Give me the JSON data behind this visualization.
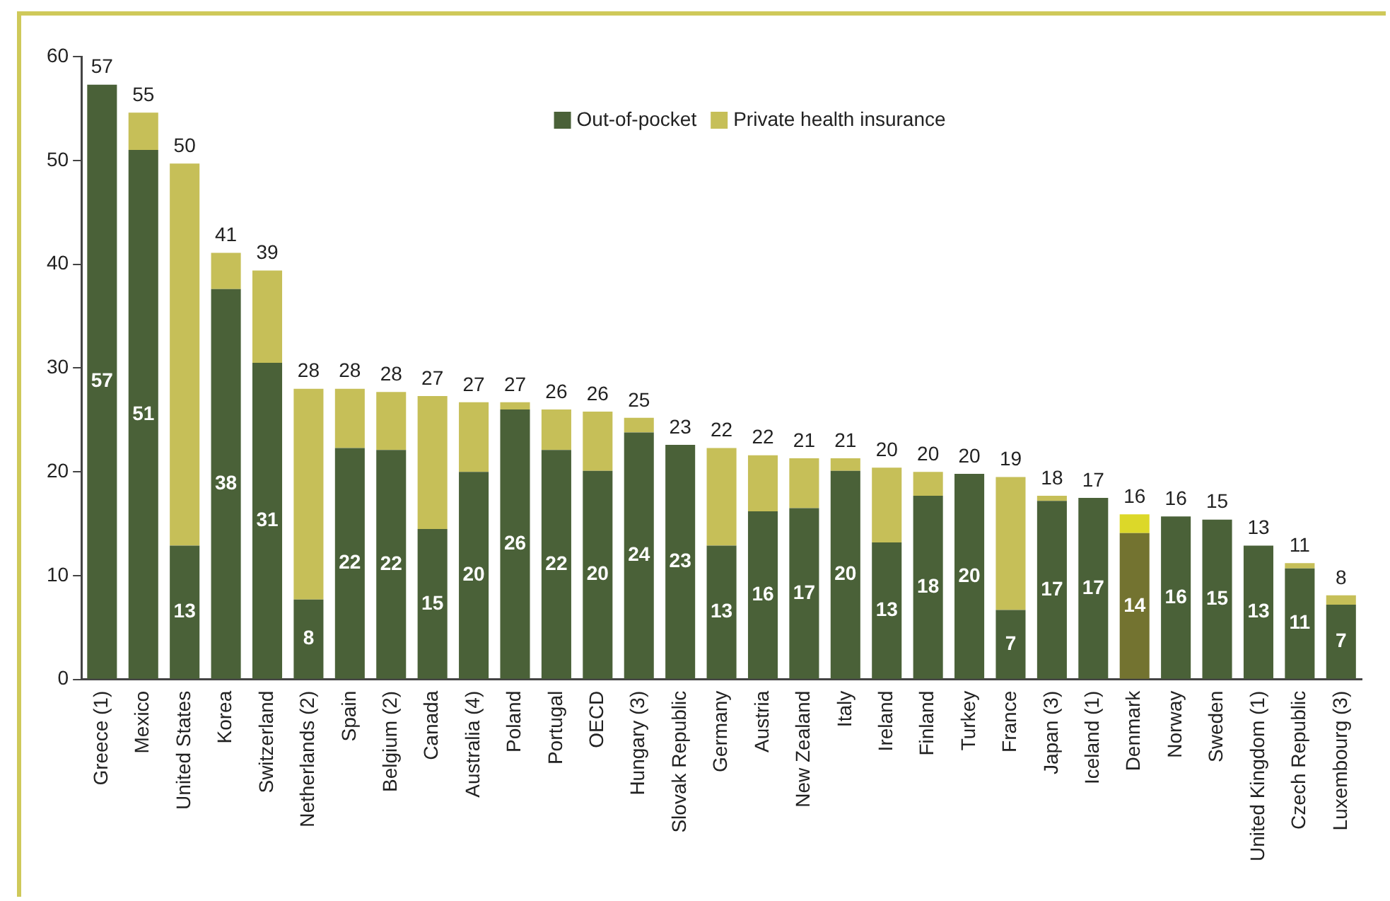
{
  "chart_data": {
    "type": "bar",
    "stacked": true,
    "legend": "top",
    "grid": false,
    "categories": [
      "Greece (1)",
      "Mexico",
      "United States",
      "Korea",
      "Switzerland",
      "Netherlands (2)",
      "Spain",
      "Belgium (2)",
      "Canada",
      "Australia (4)",
      "Poland",
      "Portugal",
      "OECD",
      "Hungary (3)",
      "Slovak Republic",
      "Germany",
      "Austria",
      "New Zealand",
      "Italy",
      "Ireland",
      "Finland",
      "Turkey",
      "France",
      "Japan (3)",
      "Iceland (1)",
      "Denmark",
      "Norway",
      "Sweden",
      "United Kingdom (1)",
      "Czech Republic",
      "Luxembourg (3)"
    ],
    "series": [
      {
        "name": "Out-of-pocket",
        "color": "#4a6138",
        "colors": [
          "#4a6138",
          "#4a6138",
          "#4a6138",
          "#4a6138",
          "#4a6138",
          "#4a6138",
          "#4a6138",
          "#4a6138",
          "#4a6138",
          "#4a6138",
          "#4a6138",
          "#4a6138",
          "#4a6138",
          "#4a6138",
          "#4a6138",
          "#4a6138",
          "#4a6138",
          "#4a6138",
          "#4a6138",
          "#4a6138",
          "#4a6138",
          "#4a6138",
          "#4a6138",
          "#4a6138",
          "#4a6138",
          "#737330",
          "#4a6138",
          "#4a6138",
          "#4a6138",
          "#4a6138",
          "#4a6138"
        ],
        "values": [
          57.3,
          51.0,
          12.9,
          37.6,
          30.5,
          7.7,
          22.3,
          22.1,
          14.5,
          20.0,
          26.0,
          22.1,
          20.1,
          23.8,
          22.6,
          12.9,
          16.2,
          16.5,
          20.1,
          13.2,
          17.7,
          19.8,
          6.7,
          17.2,
          17.5,
          14.1,
          15.7,
          15.4,
          12.9,
          10.7,
          7.2
        ],
        "value_labels": [
          "57",
          "51",
          "13",
          "38",
          "31",
          "8",
          "22",
          "22",
          "15",
          "20",
          "26",
          "22",
          "20",
          "24",
          "23",
          "13",
          "16",
          "17",
          "20",
          "13",
          "18",
          "20",
          "7",
          "17",
          "17",
          "14",
          "16",
          "15",
          "13",
          "11",
          "7"
        ]
      },
      {
        "name": "Private health insurance",
        "color": "#c6bf58",
        "colors": [
          "#c6bf58",
          "#c6bf58",
          "#c6bf58",
          "#c6bf58",
          "#c6bf58",
          "#c6bf58",
          "#c6bf58",
          "#c6bf58",
          "#c6bf58",
          "#c6bf58",
          "#c6bf58",
          "#c6bf58",
          "#c6bf58",
          "#c6bf58",
          "#c6bf58",
          "#c6bf58",
          "#c6bf58",
          "#c6bf58",
          "#c6bf58",
          "#c6bf58",
          "#c6bf58",
          "#c6bf58",
          "#c6bf58",
          "#c6bf58",
          "#c6bf58",
          "#dcd829",
          "#c6bf58",
          "#c6bf58",
          "#c6bf58",
          "#c6bf58",
          "#c6bf58"
        ],
        "values": [
          0,
          3.6,
          36.8,
          3.5,
          8.9,
          20.3,
          5.7,
          5.6,
          12.8,
          6.7,
          0.7,
          3.9,
          5.7,
          1.4,
          0,
          9.4,
          5.4,
          4.8,
          1.2,
          7.2,
          2.3,
          0,
          12.8,
          0.5,
          0,
          1.8,
          0,
          0,
          0,
          0.5,
          0.9
        ]
      }
    ],
    "totals": [
      "57",
      "55",
      "50",
      "41",
      "39",
      "28",
      "28",
      "28",
      "27",
      "27",
      "27",
      "26",
      "26",
      "25",
      "23",
      "22",
      "22",
      "21",
      "21",
      "20",
      "20",
      "20",
      "19",
      "18",
      "17",
      "16",
      "16",
      "15",
      "13",
      "11",
      "8"
    ],
    "ylim": [
      0,
      60
    ],
    "yticks": [
      0,
      10,
      20,
      30,
      40,
      50,
      60
    ]
  }
}
